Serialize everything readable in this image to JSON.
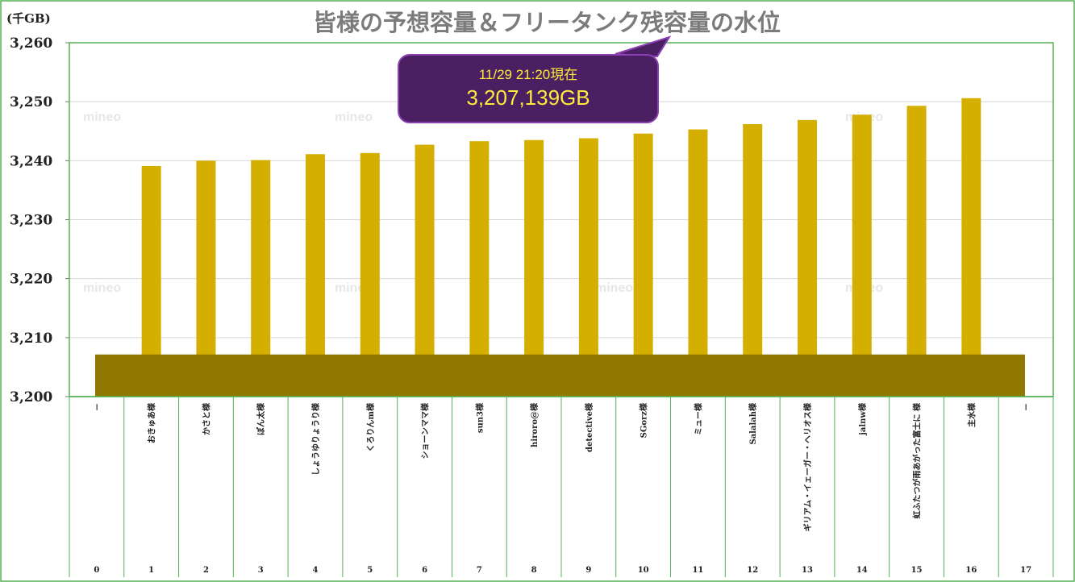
{
  "chart_data": {
    "type": "bar",
    "title": "皆様の予想容量＆フリータンク残容量の水位",
    "ylabel": "(千GB)",
    "ylim": [
      3200,
      3260
    ],
    "yticks": [
      3200,
      3210,
      3220,
      3230,
      3240,
      3250,
      3260
    ],
    "ytick_labels": [
      "3,200",
      "3,210",
      "3,220",
      "3,230",
      "3,240",
      "3,250",
      "3,260"
    ],
    "categories": [
      "－",
      "おきゅあ様",
      "かさと様",
      "ぽん太様",
      "しょうゆりょうり様",
      "くろりんm様",
      "ショーンママ様",
      "sun3様",
      "hiroro@様",
      "detective様",
      "SGorz様",
      "ミュー様",
      "Salalah様",
      "ギリアム・イェーガー・ヘリオス様",
      "jalnw様",
      "虹ふたつが雨あがった富士に 様",
      "主水様",
      "－"
    ],
    "indices": [
      "0",
      "1",
      "2",
      "3",
      "4",
      "5",
      "6",
      "7",
      "8",
      "9",
      "10",
      "11",
      "12",
      "13",
      "14",
      "15",
      "16",
      "17"
    ],
    "series": [
      {
        "name": "予想容量",
        "values": [
          null,
          3239.1,
          3240.0,
          3240.1,
          3241.1,
          3241.3,
          3242.7,
          3243.3,
          3243.5,
          3243.8,
          3244.6,
          3245.3,
          3246.2,
          3246.9,
          3247.8,
          3249.3,
          3250.6,
          null
        ]
      },
      {
        "name": "フリータンク残容量",
        "values": [
          3207.139,
          3207.139,
          3207.139,
          3207.139,
          3207.139,
          3207.139,
          3207.139,
          3207.139,
          3207.139,
          3207.139,
          3207.139,
          3207.139,
          3207.139,
          3207.139,
          3207.139,
          3207.139,
          3207.139,
          3207.139
        ]
      }
    ],
    "annotation": {
      "time_label": "11/29 21:20現在",
      "value_label": "3,207,139GB"
    },
    "watermark": "mineo"
  },
  "colors": {
    "bar": "#d4af00",
    "water": "#917800",
    "grid": "#d8d8d8",
    "axis_frame": "#53b153",
    "callout_fill": "#4a2062",
    "callout_border": "#8a3fb3",
    "callout_text": "#ffeb3b"
  }
}
